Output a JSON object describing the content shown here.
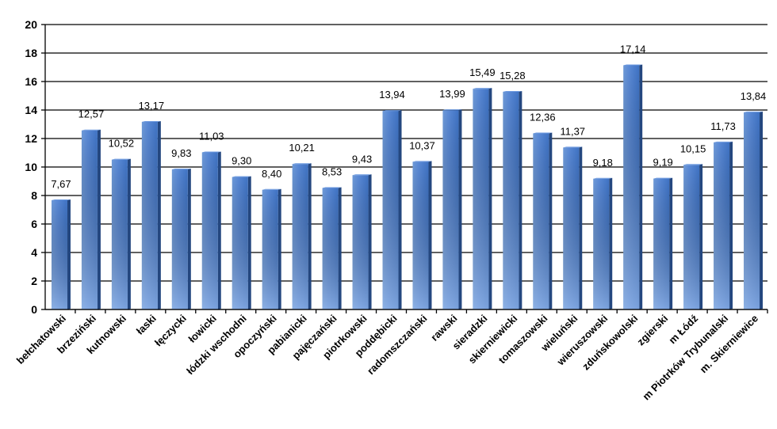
{
  "chart_data": {
    "type": "bar",
    "categories": [
      "bełchatowski",
      "brzeziński",
      "kutnowski",
      "łaski",
      "łęczycki",
      "łowicki",
      "łódzki wschodni",
      "opoczyński",
      "pabianicki",
      "pajęczański",
      "piotrkowski",
      "poddębicki",
      "radomszczański",
      "rawski",
      "sieradzki",
      "skierniewicki",
      "tomaszowski",
      "wieluński",
      "wieruszowski",
      "zduńskowolski",
      "zgierski",
      "m Łódź",
      "m Piotrków Trybunalski",
      "m. Skierniewice"
    ],
    "values": [
      7.67,
      12.57,
      10.52,
      13.17,
      9.83,
      11.03,
      9.3,
      8.4,
      10.21,
      8.53,
      9.43,
      13.94,
      10.37,
      13.99,
      15.49,
      15.28,
      12.36,
      11.37,
      9.18,
      17.14,
      9.19,
      10.15,
      11.73,
      13.84
    ],
    "data_labels": [
      "7,67",
      "12,57",
      "10,52",
      "13,17",
      "9,83",
      "11,03",
      "9,30",
      "8,40",
      "10,21",
      "8,53",
      "9,43",
      "13,94",
      "10,37",
      "13,99",
      "15,49",
      "15,28",
      "12,36",
      "11,37",
      "9,18",
      "17,14",
      "9,19",
      "10,15",
      "11,73",
      "13,84"
    ],
    "y_ticks": [
      "0",
      "2",
      "4",
      "6",
      "8",
      "10",
      "12",
      "14",
      "16",
      "18",
      "20"
    ],
    "ylim": [
      0,
      20
    ],
    "grid": true,
    "legend": "none",
    "title": "",
    "xlabel": "",
    "ylabel": "",
    "colors": {
      "bar_light": "#8fb4e8",
      "bar_main": "#4a7fcf",
      "bar_dark": "#2d5aa3",
      "bar_side": "#24477f",
      "bar_top": "#6f9be0",
      "gridline": "#000000"
    }
  }
}
